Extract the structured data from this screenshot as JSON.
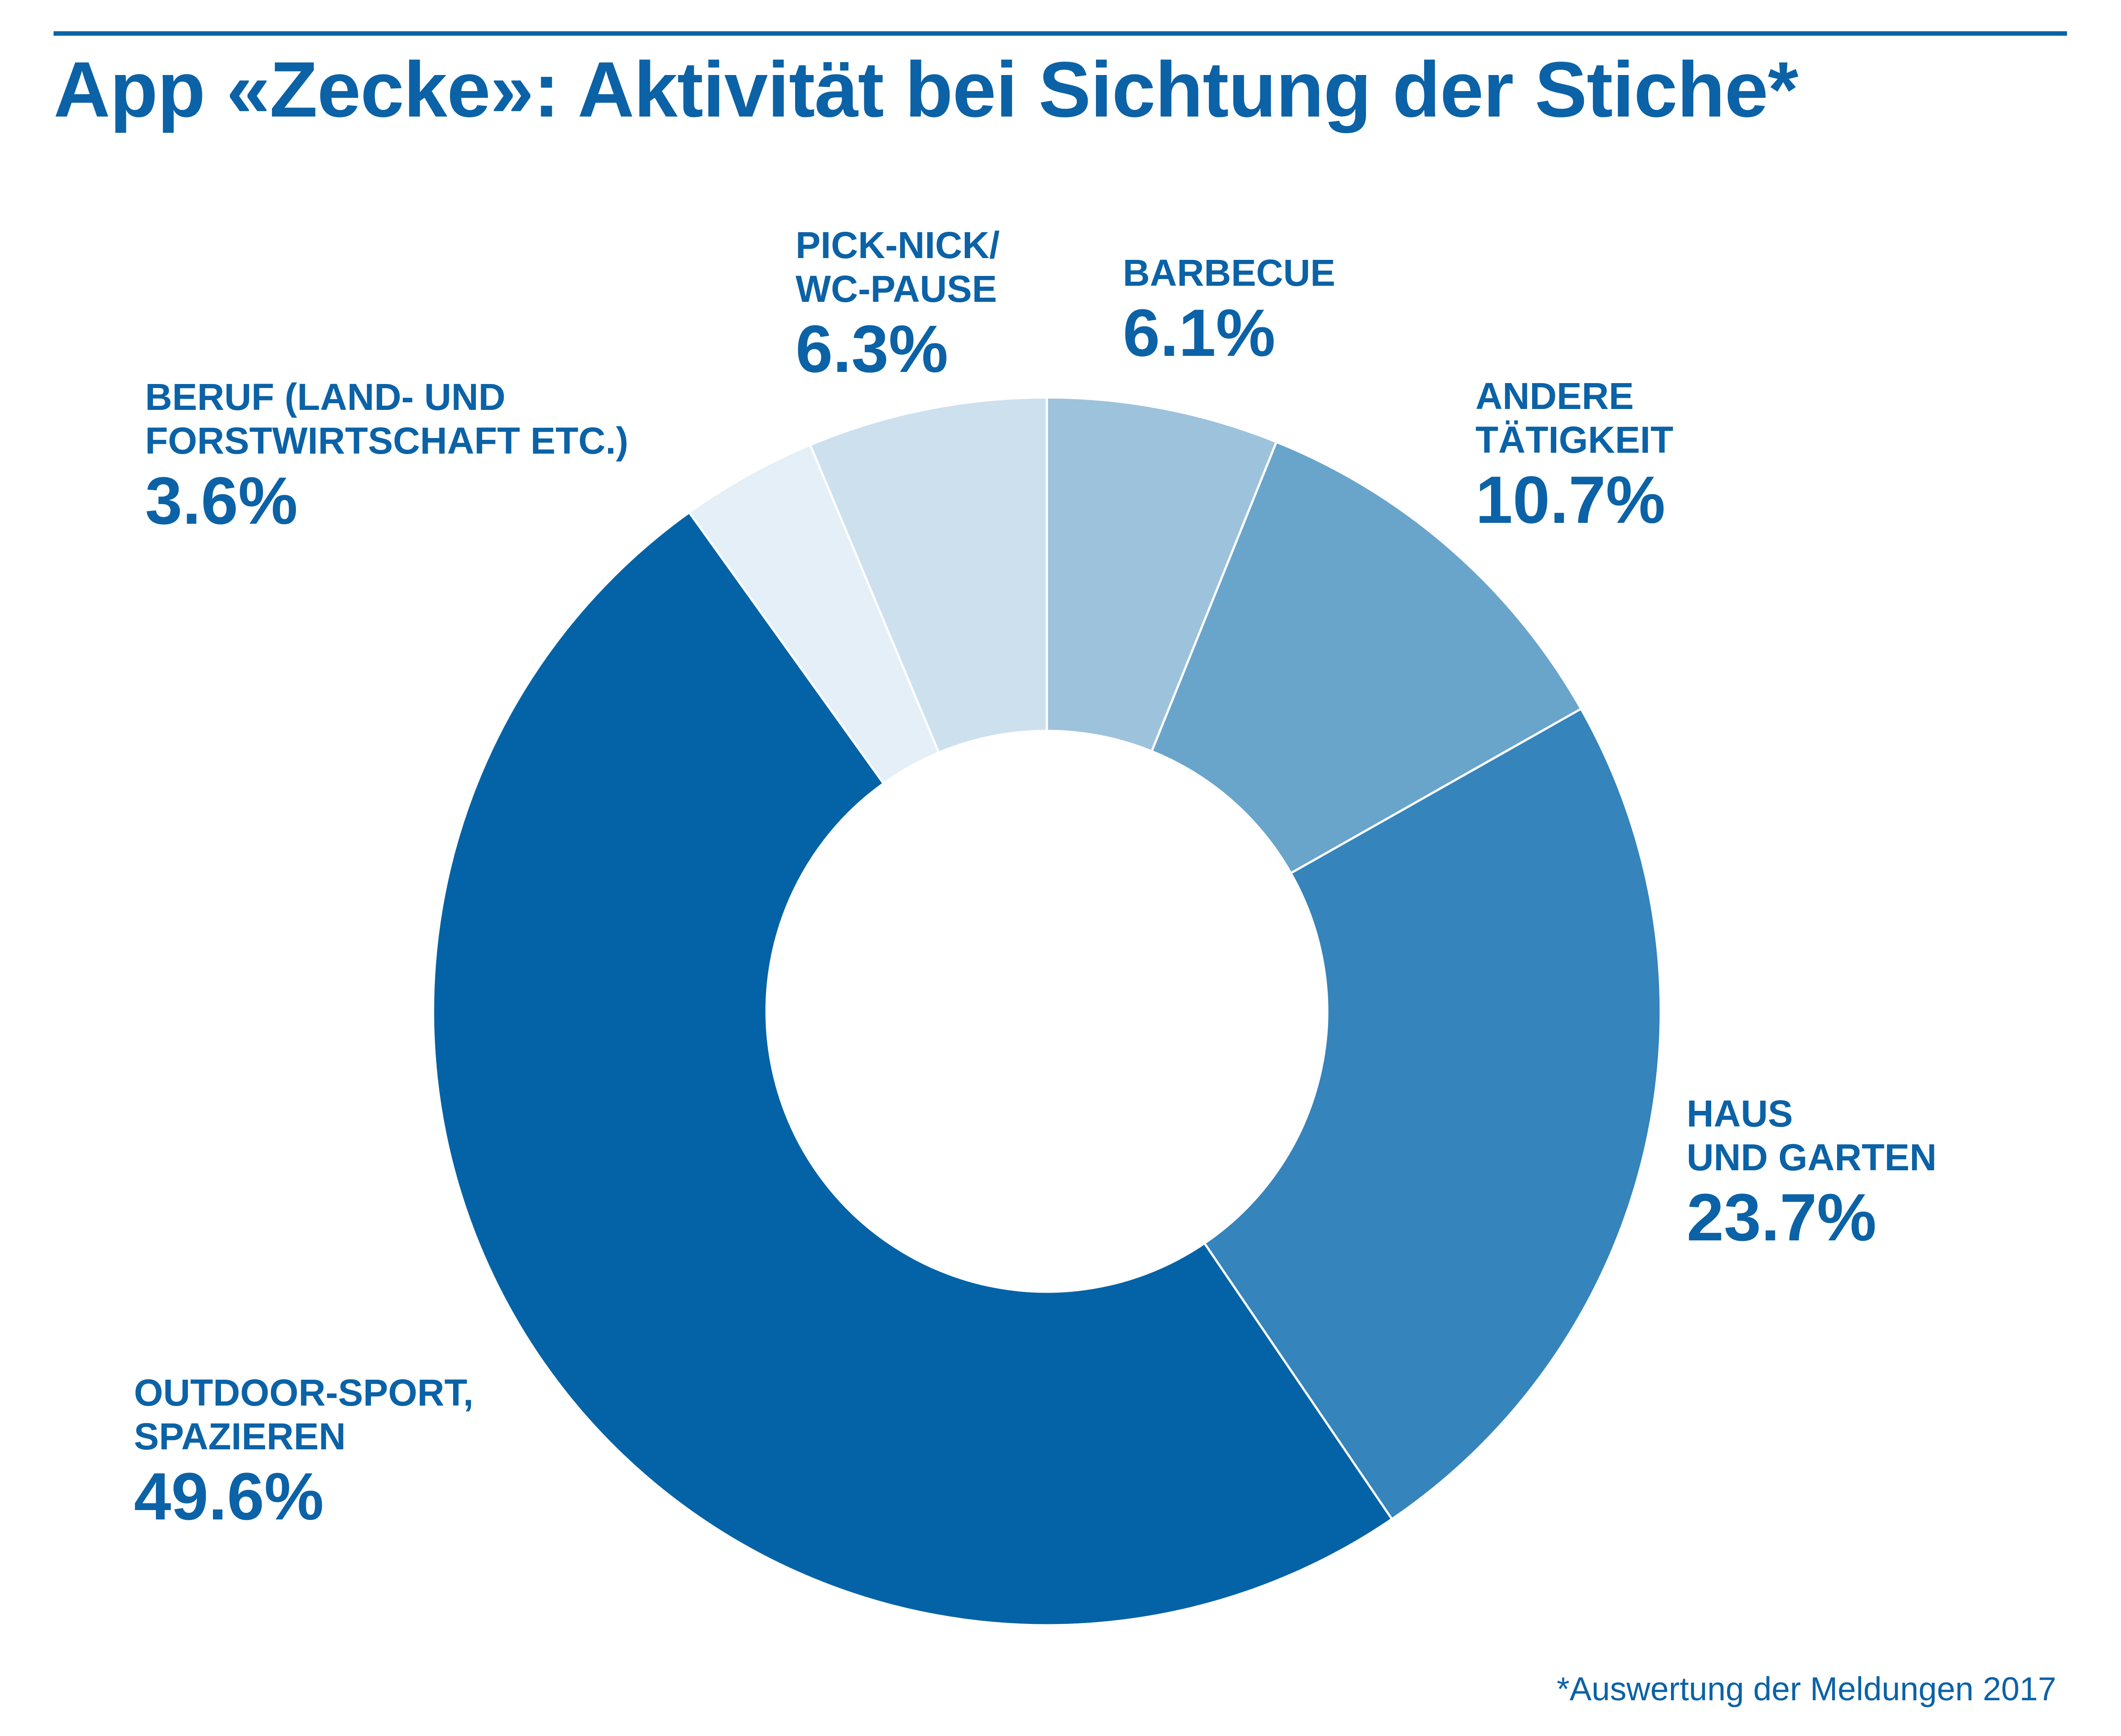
{
  "title": "App «Zecke»: Aktivität bei Sichtung der Stiche*",
  "footnote": "*Auswertung der Meldungen 2017",
  "chart_data": {
    "type": "pie",
    "donut": true,
    "title": "App «Zecke»: Aktivität bei Sichtung der Stiche*",
    "unit": "%",
    "slices": [
      {
        "label": "BARBECUE",
        "value": 6.1,
        "pct_label": "6.1%",
        "color": "#9dc2dc"
      },
      {
        "label": "ANDERE TÄTIGKEIT",
        "value": 10.7,
        "pct_label": "10.7%",
        "color": "#69a4cb"
      },
      {
        "label": "HAUS UND GARTEN",
        "value": 23.7,
        "pct_label": "23.7%",
        "color": "#3584bc"
      },
      {
        "label": "OUTDOOR-SPORT, SPAZIEREN",
        "value": 49.6,
        "pct_label": "49.6%",
        "color": "#0463a6"
      },
      {
        "label": "BERUF (LAND- UND FORSTWIRTSCHAFT ETC.)",
        "value": 3.6,
        "pct_label": "3.6%",
        "color": "#e4eff7"
      },
      {
        "label": "PICK-NICK/ WC-PAUSE",
        "value": 6.3,
        "pct_label": "6.3%",
        "color": "#cde0ee"
      }
    ],
    "labels": {
      "barbecue": {
        "lines": [
          "BARBECUE"
        ],
        "pct": "6.1%"
      },
      "andere": {
        "lines": [
          "ANDERE",
          "TÄTIGKEIT"
        ],
        "pct": "10.7%"
      },
      "haus": {
        "lines": [
          "HAUS",
          "UND GARTEN"
        ],
        "pct": "23.7%"
      },
      "outdoor": {
        "lines": [
          "OUTDOOR-SPORT,",
          "SPAZIEREN"
        ],
        "pct": "49.6%"
      },
      "beruf": {
        "lines": [
          "BERUF (LAND- UND",
          "FORSTWIRTSCHAFT ETC.)"
        ],
        "pct": "3.6%"
      },
      "picknick": {
        "lines": [
          "PICK-NICK/",
          "WC-PAUSE"
        ],
        "pct": "6.3%"
      }
    }
  }
}
